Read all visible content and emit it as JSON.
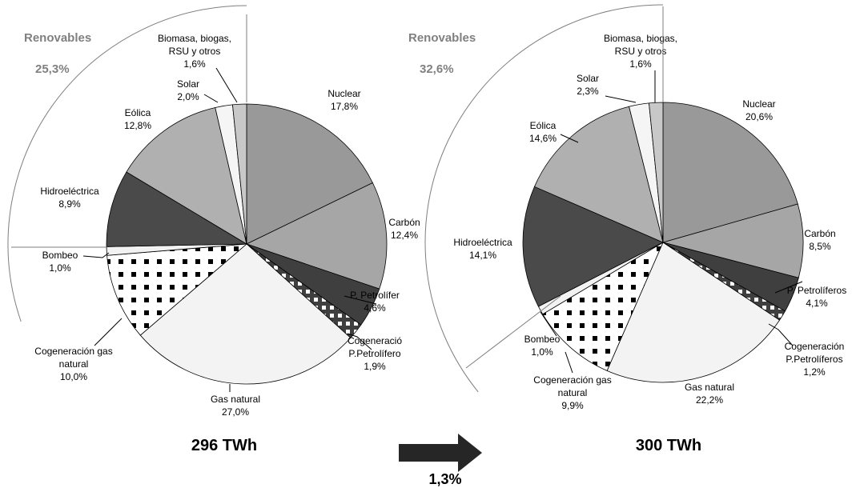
{
  "colors": {
    "Nuclear": "#999999",
    "Carbón": "#a6a6a6",
    "P. Petrolíferos": "#3f3f3f",
    "Cogeneración P.Petrolíferos": "#3f3f3f",
    "Gas natural": "#f3f3f3",
    "Cogeneración gas natural": "#ffffff",
    "Bombeo": "#f2f2f2",
    "Hidroeléctrica": "#4a4a4a",
    "Eólica": "#b0b0b0",
    "Solar": "#f5f5f5",
    "Biomasa, biogas, RSU y otros": "#c8c8c8"
  },
  "chart_data": [
    {
      "type": "pie",
      "total": "296 TWh",
      "group_label": "Renovables",
      "group_value": "25,3%",
      "slices": [
        {
          "name": "Nuclear",
          "value": 17.8,
          "label": [
            "Nuclear",
            "17,8%"
          ]
        },
        {
          "name": "Carbón",
          "value": 12.4,
          "label": [
            "Carbón",
            "12,4%"
          ]
        },
        {
          "name": "P. Petrolíferos",
          "value": 4.6,
          "label": [
            "P. Petrolífer",
            "4,6%"
          ]
        },
        {
          "name": "Cogeneración P.Petrolíferos",
          "value": 1.9,
          "label": [
            "Cogeneració",
            "P.Petrolífero",
            "1,9%"
          ]
        },
        {
          "name": "Gas natural",
          "value": 27.0,
          "label": [
            "Gas natural",
            "27,0%"
          ]
        },
        {
          "name": "Cogeneración gas natural",
          "value": 10.0,
          "label": [
            "Cogeneración gas",
            "natural",
            "10,0%"
          ]
        },
        {
          "name": "Bombeo",
          "value": 1.0,
          "label": [
            "Bombeo",
            "1,0%"
          ]
        },
        {
          "name": "Hidroeléctrica",
          "value": 8.9,
          "label": [
            "Hidroeléctrica",
            "8,9%"
          ]
        },
        {
          "name": "Eólica",
          "value": 12.8,
          "label": [
            "Eólica",
            "12,8%"
          ]
        },
        {
          "name": "Solar",
          "value": 2.0,
          "label": [
            "Solar",
            "2,0%"
          ]
        },
        {
          "name": "Biomasa, biogas, RSU y otros",
          "value": 1.6,
          "label": [
            "Biomasa, biogas,",
            "RSU y otros",
            "1,6%"
          ]
        }
      ]
    },
    {
      "type": "pie",
      "total": "300 TWh",
      "group_label": "Renovables",
      "group_value": "32,6%",
      "slices": [
        {
          "name": "Nuclear",
          "value": 20.6,
          "label": [
            "Nuclear",
            "20,6%"
          ]
        },
        {
          "name": "Carbón",
          "value": 8.5,
          "label": [
            "Carbón",
            "8,5%"
          ]
        },
        {
          "name": "P. Petrolíferos",
          "value": 4.1,
          "label": [
            "P. Petrolíferos",
            "4,1%"
          ]
        },
        {
          "name": "Cogeneración P.Petrolíferos",
          "value": 1.2,
          "label": [
            "Cogeneración",
            "P.Petrolíferos",
            "1,2%"
          ]
        },
        {
          "name": "Gas natural",
          "value": 22.2,
          "label": [
            "Gas natural",
            "22,2%"
          ]
        },
        {
          "name": "Cogeneración gas natural",
          "value": 9.9,
          "label": [
            "Cogeneración gas",
            "natural",
            "9,9%"
          ]
        },
        {
          "name": "Bombeo",
          "value": 1.0,
          "label": [
            "Bombeo",
            "1,0%"
          ]
        },
        {
          "name": "Hidroeléctrica",
          "value": 14.1,
          "label": [
            "Hidroeléctrica",
            "14,1%"
          ]
        },
        {
          "name": "Eólica",
          "value": 14.6,
          "label": [
            "Eólica",
            "14,6%"
          ]
        },
        {
          "name": "Solar",
          "value": 2.3,
          "label": [
            "Solar",
            "2,3%"
          ]
        },
        {
          "name": "Biomasa, biogas, RSU y otros",
          "value": 1.6,
          "label": [
            "Biomasa, biogas,",
            "RSU y otros",
            "1,6%"
          ]
        }
      ]
    }
  ],
  "growth": "1,3%"
}
